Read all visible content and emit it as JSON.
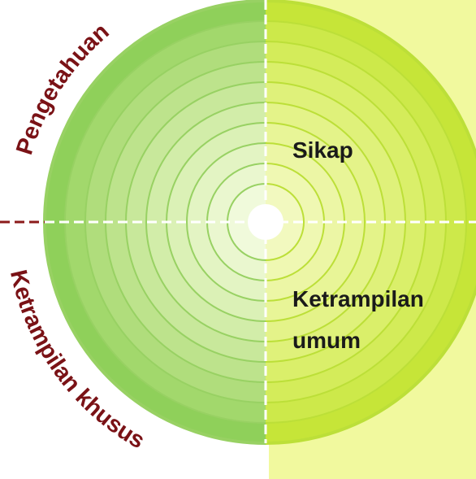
{
  "labels": {
    "pengetahuan": "Pengetahuan",
    "sikap": "Sikap",
    "ketrampilan_umum": [
      "Ketrampilan",
      "umum"
    ],
    "ketrampilan_khusus": "Ketrampilan khusus"
  }
}
